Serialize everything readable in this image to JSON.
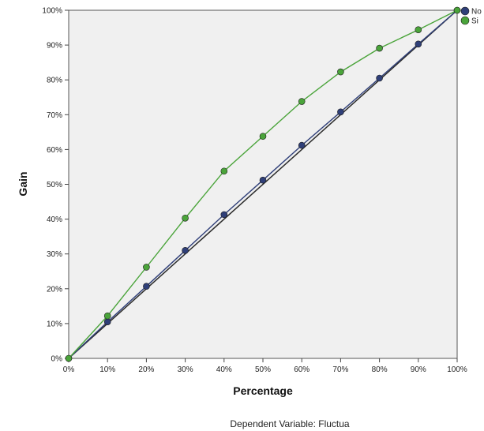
{
  "chart_data": {
    "type": "line",
    "xlabel": "Percentage",
    "ylabel": "Gain",
    "xlim": [
      0,
      100
    ],
    "ylim": [
      0,
      100
    ],
    "x_ticks": [
      "0%",
      "10%",
      "20%",
      "30%",
      "40%",
      "50%",
      "60%",
      "70%",
      "80%",
      "90%",
      "100%"
    ],
    "y_ticks": [
      "0%",
      "10%",
      "20%",
      "30%",
      "40%",
      "50%",
      "60%",
      "70%",
      "80%",
      "90%",
      "100%"
    ],
    "x": [
      0,
      10,
      20,
      30,
      40,
      50,
      60,
      70,
      80,
      90,
      100
    ],
    "series": [
      {
        "name": "No",
        "color": "#2f3f78",
        "values": [
          0,
          10.5,
          20.7,
          31,
          41.3,
          51.2,
          61.2,
          70.8,
          80.5,
          90.3,
          100
        ]
      },
      {
        "name": "Si",
        "color": "#4aa43a",
        "values": [
          0,
          12.2,
          26.2,
          40.3,
          53.8,
          63.8,
          73.8,
          82.3,
          89.1,
          94.4,
          100
        ]
      }
    ],
    "baseline": {
      "color": "#2b2b2b",
      "values": [
        0,
        100
      ]
    },
    "legend_position": "top-right",
    "grid": false,
    "plot_background": "#f0f0f0",
    "footnote": "Dependent Variable: Fluctua"
  }
}
